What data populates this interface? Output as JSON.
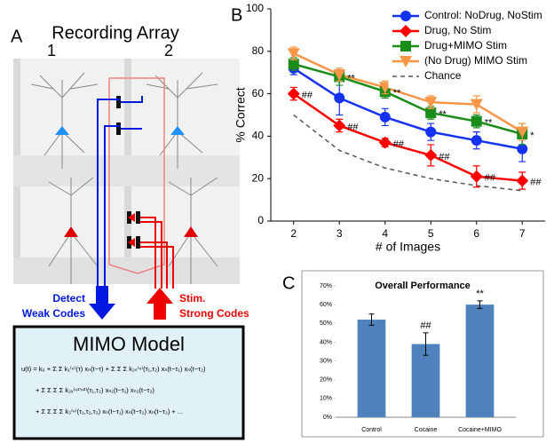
{
  "panel_labels": [
    "A",
    "B",
    "C"
  ],
  "panel_a": {
    "title": "Recording Array",
    "array_labels": [
      "1",
      "2"
    ],
    "detect_label": [
      "Detect",
      "Weak Codes"
    ],
    "stim_label": [
      "Stim.",
      "Strong Codes"
    ],
    "model_title": "MIMO Model",
    "equation": [
      "u(t) = k₀ + Σ Σ k₁⁽ⁿ⁾(τ) xₙ(t−τ) + Σ Σ Σ k₂ₛ⁽ⁿ⁾(τ₁,τ₂) xₙ(t−τ₁) xₙ(t−τ₂)",
      "+ Σ Σ Σ Σ k₂ₓ⁽ⁿ¹'ⁿ²⁾(τ₁,τ₂) xₙ₁(t−τ₁) xₙ₂(t−τ₂)",
      "+ Σ Σ Σ Σ k₃⁽ⁿ⁾(τ₁,τ₂,τ₃) xₙ(t−τ₁) xₙ(t−τ₂) xₙ(t−τ₃) + ..."
    ]
  },
  "chart_data": [
    {
      "type": "line",
      "xlabel": "# of Images",
      "ylabel": "% Correct",
      "x": [
        2,
        3,
        4,
        5,
        6,
        7
      ],
      "xlim": [
        1.5,
        7.5
      ],
      "xticks": [
        2,
        3,
        4,
        5,
        6,
        7
      ],
      "ylim": [
        0,
        100
      ],
      "yticks": [
        0,
        20,
        40,
        60,
        80,
        100
      ],
      "legend": "upper right",
      "series": [
        {
          "name": "Control: NoDrug, NoStim",
          "color": "#1432f0",
          "marker": "circle",
          "values": [
            72,
            58,
            49,
            42,
            38,
            34
          ],
          "errors": [
            3,
            8,
            4,
            4,
            4,
            6
          ]
        },
        {
          "name": "Drug, No Stim",
          "color": "#ff0000",
          "marker": "diamond",
          "values": [
            60,
            45,
            37,
            31,
            21,
            19
          ],
          "errors": [
            3,
            3,
            2,
            5,
            5,
            4
          ],
          "point_labels": [
            "##",
            "##",
            "##",
            "##",
            "##",
            "##"
          ]
        },
        {
          "name": "Drug+MIMO Stim",
          "color": "#1a8c1a",
          "marker": "square",
          "values": [
            74,
            68,
            61,
            51,
            47,
            41
          ],
          "errors": [
            3,
            4,
            3,
            3,
            3,
            5
          ],
          "point_labels": [
            null,
            "**",
            "**",
            "**",
            "**",
            "*"
          ]
        },
        {
          "name": "(No Drug) MIMO Stim",
          "color": "#f79646",
          "marker": "triangle-down",
          "values": [
            79,
            69,
            63,
            56,
            55,
            42
          ],
          "errors": [
            3,
            3,
            3,
            3,
            4,
            4
          ]
        },
        {
          "name": "Chance",
          "color": "#555555",
          "marker": "none",
          "dash": true,
          "values": [
            50,
            33.3,
            25,
            20,
            16.7,
            14.3
          ]
        }
      ]
    },
    {
      "type": "bar",
      "title": "Overall Performance",
      "categories": [
        "Control",
        "Cocaine",
        "Cocaine+MIMO"
      ],
      "values": [
        52,
        39,
        60
      ],
      "errors": [
        3,
        6,
        2
      ],
      "color": "#4f81bd",
      "value_annotations": [
        null,
        "##",
        "**"
      ],
      "ylim": [
        0,
        70
      ],
      "yticks": [
        {
          "value": 0,
          "label": "0%"
        },
        {
          "value": 10,
          "label": "10%"
        },
        {
          "value": 20,
          "label": "20%"
        },
        {
          "value": 30,
          "label": "30%"
        },
        {
          "value": 40,
          "label": "40%"
        },
        {
          "value": 50,
          "label": "50%"
        },
        {
          "value": 60,
          "label": "60%"
        },
        {
          "value": 70,
          "label": "70%"
        }
      ]
    }
  ]
}
